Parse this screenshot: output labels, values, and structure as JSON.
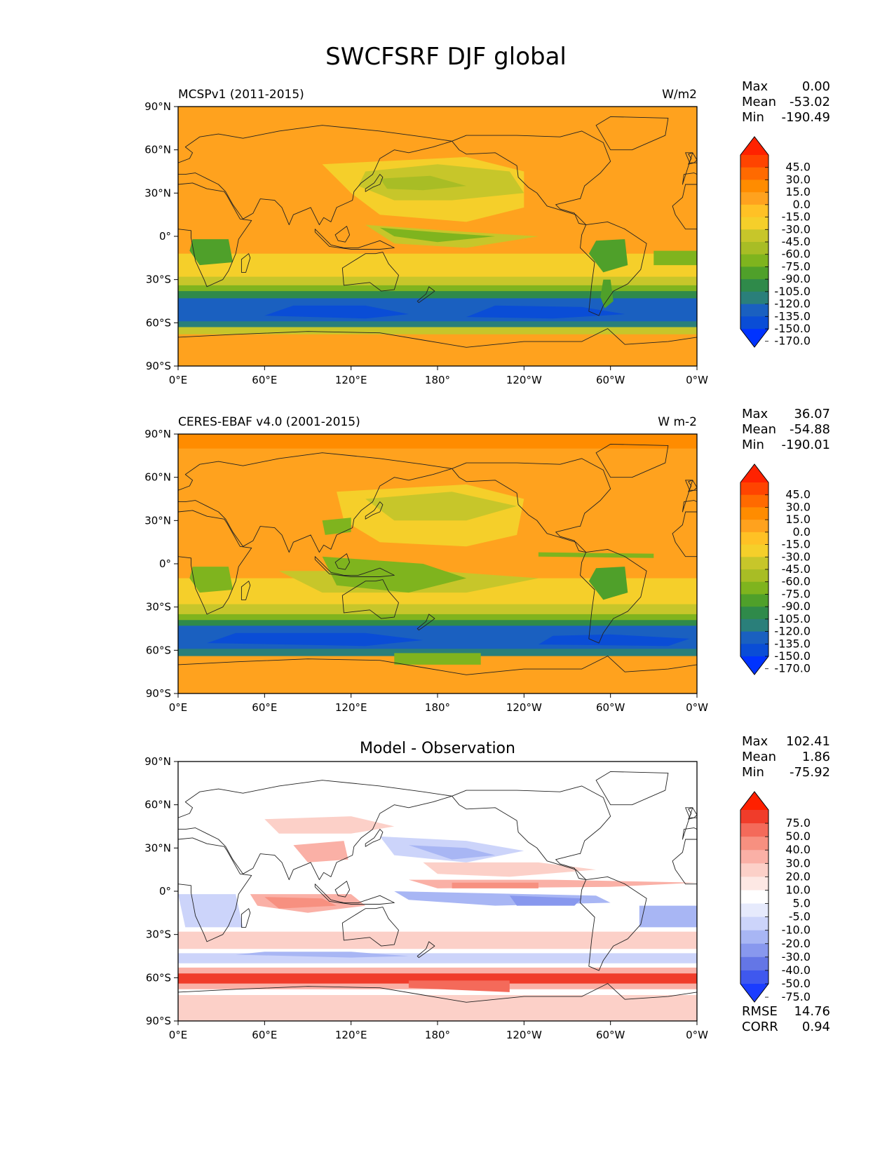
{
  "title": "SWCFSRF DJF global",
  "lon_ticks": [
    "0°E",
    "60°E",
    "120°E",
    "180°",
    "120°W",
    "60°W",
    "0°W"
  ],
  "lat_ticks": [
    "90°N",
    "60°N",
    "30°N",
    "0°",
    "30°S",
    "60°S",
    "90°S"
  ],
  "panels": [
    {
      "left_title": "MCSPv1 (2011-2015)",
      "center_title": "",
      "units": "W/m2",
      "stats": [
        {
          "label": "Max",
          "value": "0.00"
        },
        {
          "label": "Mean",
          "value": "-53.02"
        },
        {
          "label": "Min",
          "value": "-190.49"
        }
      ],
      "extra_stats": [],
      "colorbar": {
        "labels": [
          "45.0",
          "30.0",
          "15.0",
          "0.0",
          "-15.0",
          "-30.0",
          "-45.0",
          "-60.0",
          "-75.0",
          "-90.0",
          "-105.0",
          "-120.0",
          "-135.0",
          "-150.0",
          "-170.0"
        ],
        "colors": [
          "#ff2200",
          "#ff4400",
          "#ff6a00",
          "#ff8c00",
          "#ffa21e",
          "#ffc125",
          "#f5cf2a",
          "#c7c62a",
          "#a8bd25",
          "#7fb41e",
          "#4fa02a",
          "#2f8a4a",
          "#2a7f7a",
          "#1a60c0",
          "#0a4dd6",
          "#0033ff"
        ]
      },
      "field_type": "model"
    },
    {
      "left_title": "CERES-EBAF v4.0 (2001-2015)",
      "center_title": "",
      "units": "W m-2",
      "stats": [
        {
          "label": "Max",
          "value": "36.07"
        },
        {
          "label": "Mean",
          "value": "-54.88"
        },
        {
          "label": "Min",
          "value": "-190.01"
        }
      ],
      "extra_stats": [],
      "colorbar": {
        "labels": [
          "45.0",
          "30.0",
          "15.0",
          "0.0",
          "-15.0",
          "-30.0",
          "-45.0",
          "-60.0",
          "-75.0",
          "-90.0",
          "-105.0",
          "-120.0",
          "-135.0",
          "-150.0",
          "-170.0"
        ],
        "colors": [
          "#ff2200",
          "#ff4400",
          "#ff6a00",
          "#ff8c00",
          "#ffa21e",
          "#ffc125",
          "#f5cf2a",
          "#c7c62a",
          "#a8bd25",
          "#7fb41e",
          "#4fa02a",
          "#2f8a4a",
          "#2a7f7a",
          "#1a60c0",
          "#0a4dd6",
          "#0033ff"
        ]
      },
      "field_type": "obs"
    },
    {
      "left_title": "",
      "center_title": "Model - Observation",
      "units": "",
      "stats": [
        {
          "label": "Max",
          "value": "102.41"
        },
        {
          "label": "Mean",
          "value": "1.86"
        },
        {
          "label": "Min",
          "value": "-75.92"
        }
      ],
      "extra_stats": [
        {
          "label": "RMSE",
          "value": "14.76"
        },
        {
          "label": "CORR",
          "value": "0.94"
        }
      ],
      "colorbar": {
        "labels": [
          "75.0",
          "50.0",
          "40.0",
          "30.0",
          "20.0",
          "10.0",
          "5.0",
          "-5.0",
          "-10.0",
          "-20.0",
          "-30.0",
          "-40.0",
          "-50.0",
          "-75.0"
        ],
        "colors": [
          "#ff2000",
          "#f03c2a",
          "#f46a5a",
          "#f79080",
          "#fab0a6",
          "#fcd0c8",
          "#fde8e4",
          "#ffffff",
          "#e6eafc",
          "#ccd4fa",
          "#a8b6f4",
          "#8898ee",
          "#6476e6",
          "#3f58ee",
          "#1a3cff"
        ]
      },
      "field_type": "diff"
    }
  ]
}
